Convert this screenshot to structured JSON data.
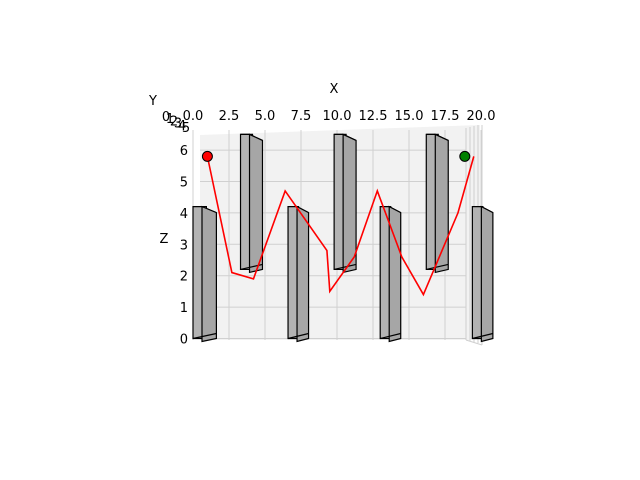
{
  "chart_data": {
    "type": "3d-line-with-obstacles",
    "xlabel": "X",
    "ylabel": "Y",
    "zlabel": "Z",
    "xlim": [
      0,
      20
    ],
    "zlim": [
      0,
      6.2
    ],
    "x_ticks": [
      "0.0",
      "2.5",
      "5.0",
      "7.5",
      "10.0",
      "12.5",
      "15.0",
      "17.5",
      "20.0"
    ],
    "y_ticks": [
      "0",
      "1",
      "2",
      "3",
      "4",
      "5"
    ],
    "z_ticks": [
      "0",
      "1",
      "2",
      "3",
      "4",
      "5",
      "6"
    ],
    "grid": true,
    "path": {
      "color": "#ff0000",
      "x": [
        1.0,
        2.7,
        4.2,
        6.4,
        9.3,
        9.5,
        11.2,
        12.8,
        14.5,
        16.0,
        18.4,
        19.5
      ],
      "z": [
        5.8,
        2.1,
        1.9,
        4.7,
        2.8,
        1.5,
        2.6,
        4.7,
        2.6,
        1.4,
        4.0,
        5.8
      ]
    },
    "start_point": {
      "x": 1.0,
      "z": 5.8,
      "color": "#ff0000"
    },
    "end_point": {
      "x": 19.5,
      "z": 5.8,
      "color": "#008000"
    },
    "obstacles": [
      {
        "x0": 0.0,
        "x1": 1.0,
        "z0": 0.0,
        "z1": 4.2
      },
      {
        "x0": 3.3,
        "x1": 4.2,
        "z0": 2.2,
        "z1": 6.5
      },
      {
        "x0": 6.6,
        "x1": 7.4,
        "z0": 0.0,
        "z1": 4.2
      },
      {
        "x0": 9.8,
        "x1": 10.7,
        "z0": 2.2,
        "z1": 6.5
      },
      {
        "x0": 13.0,
        "x1": 13.8,
        "z0": 0.0,
        "z1": 4.2
      },
      {
        "x0": 16.2,
        "x1": 17.1,
        "z0": 2.2,
        "z1": 6.5
      },
      {
        "x0": 19.4,
        "x1": 20.2,
        "z0": 0.0,
        "z1": 4.2
      }
    ],
    "obstacle_color": "#b3b3b3"
  }
}
